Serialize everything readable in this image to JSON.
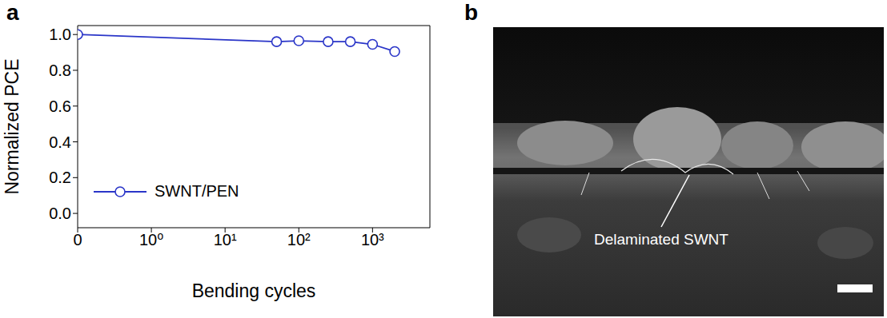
{
  "chart_data": {
    "type": "line",
    "panel_label": "a",
    "x_label": "Bending cycles",
    "y_label": "Normalized PCE",
    "log": "x",
    "xlim": [
      0,
      6000
    ],
    "xticks": [
      {
        "value": 0,
        "label": "0"
      },
      {
        "value": 1,
        "label": "10⁰"
      },
      {
        "value": 10,
        "label": "10¹"
      },
      {
        "value": 100,
        "label": "10²"
      },
      {
        "value": 1000,
        "label": "10³"
      }
    ],
    "ylim": [
      -0.08,
      1.05
    ],
    "yticks": [
      {
        "value": 0,
        "label": "0.0"
      },
      {
        "value": 0.2,
        "label": "0.2"
      },
      {
        "value": 0.4,
        "label": "0.4"
      },
      {
        "value": 0.6,
        "label": "0.6"
      },
      {
        "value": 0.8,
        "label": "0.8"
      },
      {
        "value": 1,
        "label": "1.0"
      }
    ],
    "legend": "lower left",
    "series": [
      {
        "name": "SWNT/PEN",
        "color": "#2a35c8",
        "marker": "circle",
        "line_style": "solid",
        "x": [
          0,
          50,
          100,
          250,
          500,
          1000,
          2000
        ],
        "values": [
          1.0,
          0.96,
          0.965,
          0.96,
          0.96,
          0.945,
          0.905
        ]
      }
    ]
  },
  "image": {
    "panel_label": "b",
    "annotation": "Delaminated SWNT"
  }
}
